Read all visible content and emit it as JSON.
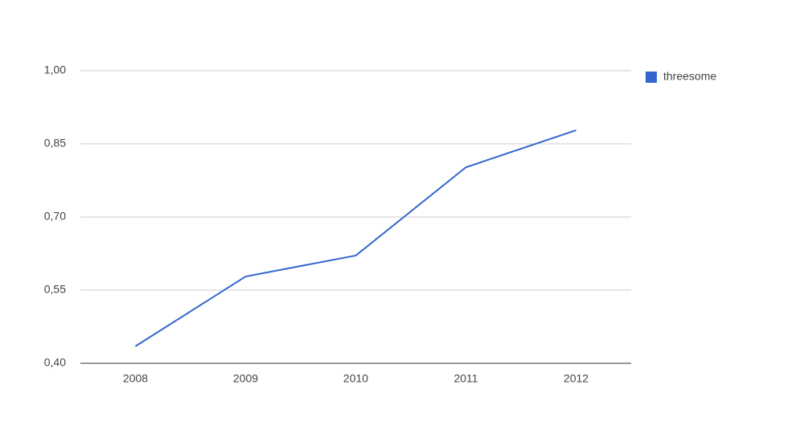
{
  "chart_data": {
    "type": "line",
    "categories": [
      "2008",
      "2009",
      "2010",
      "2011",
      "2012"
    ],
    "series": [
      {
        "name": "threesome",
        "color": "#3366cc",
        "values": [
          0.435,
          0.578,
          0.621,
          0.802,
          0.878
        ]
      }
    ],
    "ylim": [
      0.4,
      1.0
    ],
    "yticks": [
      {
        "value": 0.4,
        "label": "0,40"
      },
      {
        "value": 0.55,
        "label": "0,55"
      },
      {
        "value": 0.7,
        "label": "0,70"
      },
      {
        "value": 0.85,
        "label": "0,85"
      },
      {
        "value": 1.0,
        "label": "1,00"
      }
    ],
    "grid": true,
    "legend": "right"
  }
}
